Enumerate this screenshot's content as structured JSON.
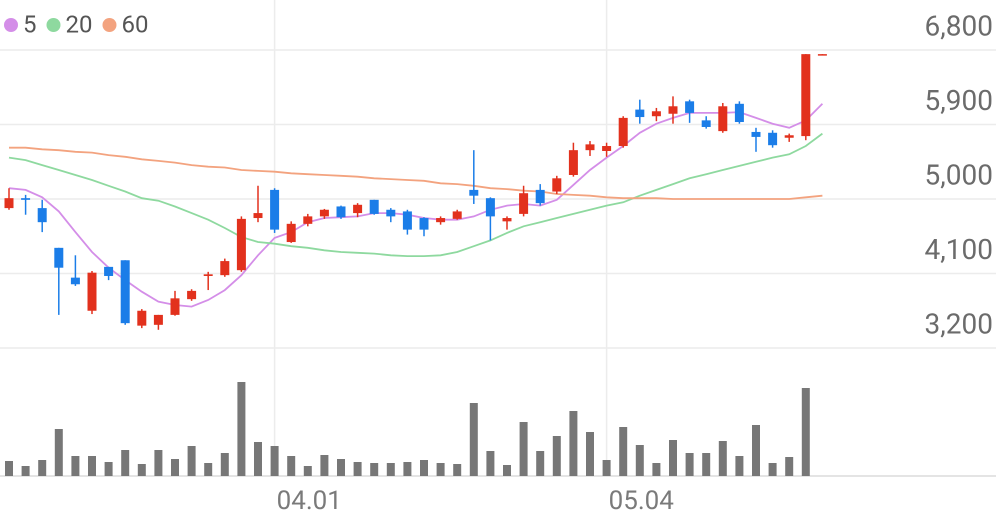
{
  "chart_data": {
    "type": "candlestick",
    "categories": [
      null,
      null,
      null,
      null,
      null,
      null,
      null,
      null,
      null,
      null,
      null,
      null,
      null,
      null,
      null,
      null,
      "04.01",
      null,
      null,
      null,
      null,
      null,
      null,
      null,
      null,
      null,
      null,
      null,
      null,
      null,
      null,
      null,
      null,
      null,
      null,
      null,
      "05.04",
      null,
      null,
      null,
      null,
      null,
      null,
      null,
      null,
      null,
      null,
      null,
      null,
      null
    ],
    "open": [
      4890,
      5010,
      4890,
      4410,
      4050,
      3650,
      4180,
      4260,
      3470,
      3480,
      3600,
      3790,
      4070,
      4080,
      4140,
      4770,
      5110,
      4480,
      4700,
      4790,
      4910,
      4830,
      4990,
      4870,
      4850,
      4770,
      4720,
      4760,
      5110,
      5010,
      4730,
      4820,
      5110,
      5090,
      5290,
      5590,
      5580,
      5640,
      6080,
      6000,
      6030,
      6180,
      5950,
      5820,
      6150,
      5810,
      5800,
      5740,
      5760,
      6740
    ],
    "high": [
      5130,
      5050,
      4990,
      4410,
      4320,
      4130,
      4180,
      4260,
      3670,
      3600,
      3890,
      3910,
      4120,
      4280,
      4790,
      5160,
      5130,
      4730,
      4820,
      4880,
      4920,
      4950,
      4990,
      4890,
      4870,
      4780,
      4790,
      4870,
      5590,
      5020,
      4790,
      5160,
      5180,
      5280,
      5680,
      5700,
      5680,
      6000,
      6200,
      6100,
      6240,
      6200,
      6000,
      6160,
      6180,
      5860,
      5830,
      5790,
      6750,
      6750
    ],
    "low": [
      4870,
      4810,
      4600,
      3600,
      3950,
      3610,
      4020,
      3480,
      3440,
      3420,
      3590,
      3770,
      3900,
      4060,
      4120,
      4720,
      4590,
      4470,
      4670,
      4760,
      4760,
      4780,
      4810,
      4720,
      4570,
      4550,
      4690,
      4750,
      4940,
      4500,
      4630,
      4790,
      4920,
      5060,
      5270,
      5520,
      5510,
      5620,
      5910,
      5940,
      5910,
      5920,
      5850,
      5800,
      5910,
      5570,
      5620,
      5690,
      5710,
      6740
    ],
    "close": [
      5010,
      4990,
      4720,
      4170,
      3970,
      4110,
      4070,
      3500,
      3650,
      3600,
      3800,
      3890,
      4090,
      4250,
      4760,
      4830,
      4630,
      4700,
      4790,
      4870,
      4780,
      4930,
      4820,
      4790,
      4630,
      4630,
      4770,
      4850,
      5040,
      4790,
      4770,
      5070,
      4950,
      5250,
      5590,
      5660,
      5640,
      5980,
      5990,
      6060,
      6120,
      6040,
      5870,
      6120,
      5930,
      5750,
      5650,
      5770,
      6750,
      6750
    ],
    "up_color": "#e2311d",
    "down_color": "#1b7de8",
    "series": [
      {
        "name": "5",
        "color": "#d48ee8",
        "values": [
          5130,
          5110,
          5020,
          4850,
          4600,
          4360,
          4170,
          4020,
          3880,
          3760,
          3720,
          3700,
          3780,
          3900,
          4080,
          4320,
          4530,
          4600,
          4720,
          4770,
          4780,
          4790,
          4830,
          4830,
          4810,
          4770,
          4750,
          4750,
          4790,
          4870,
          4920,
          4940,
          4920,
          4990,
          5170,
          5350,
          5500,
          5640,
          5800,
          5910,
          5980,
          6040,
          6040,
          6040,
          6050,
          5980,
          5910,
          5860,
          5950,
          6150
        ]
      },
      {
        "name": "20",
        "color": "#8ed99f",
        "values": [
          5500,
          5470,
          5410,
          5350,
          5290,
          5230,
          5160,
          5090,
          5010,
          4980,
          4910,
          4830,
          4750,
          4650,
          4540,
          4480,
          4460,
          4430,
          4410,
          4380,
          4360,
          4350,
          4340,
          4320,
          4310,
          4310,
          4320,
          4360,
          4430,
          4500,
          4590,
          4670,
          4720,
          4770,
          4820,
          4870,
          4920,
          4960,
          5040,
          5110,
          5180,
          5250,
          5300,
          5350,
          5400,
          5450,
          5500,
          5540,
          5640,
          5790
        ]
      },
      {
        "name": "60",
        "color": "#f3a37f",
        "values": [
          5620,
          5620,
          5600,
          5590,
          5570,
          5560,
          5530,
          5510,
          5480,
          5460,
          5440,
          5410,
          5390,
          5380,
          5350,
          5340,
          5330,
          5310,
          5300,
          5290,
          5280,
          5270,
          5250,
          5240,
          5230,
          5220,
          5190,
          5180,
          5160,
          5130,
          5120,
          5100,
          5090,
          5060,
          5050,
          5040,
          5020,
          5010,
          5010,
          5010,
          5000,
          5000,
          5000,
          5000,
          5000,
          5000,
          5000,
          5000,
          5020,
          5040
        ]
      }
    ],
    "ylim": [
      3200,
      6800
    ],
    "yticks": [
      {
        "value": 6800,
        "label": "6,800"
      },
      {
        "value": 5900,
        "label": "5,900"
      },
      {
        "value": 5000,
        "label": "5,000"
      },
      {
        "value": 4100,
        "label": "4,100"
      },
      {
        "value": 3200,
        "label": "3,200"
      }
    ],
    "volume": [
      15,
      10,
      16,
      47,
      20,
      20,
      14,
      26,
      12,
      26,
      17,
      30,
      13,
      23,
      94,
      34,
      30,
      20,
      10,
      21,
      17,
      14,
      13,
      13,
      14,
      16,
      13,
      12,
      73,
      25,
      11,
      54,
      25,
      40,
      65,
      44,
      16,
      49,
      31,
      13,
      36,
      23,
      23,
      35,
      20,
      51,
      13,
      19,
      88,
      0
    ],
    "volume_color": "#777777",
    "volume_ylim": [
      0,
      100
    ],
    "grid": true
  }
}
